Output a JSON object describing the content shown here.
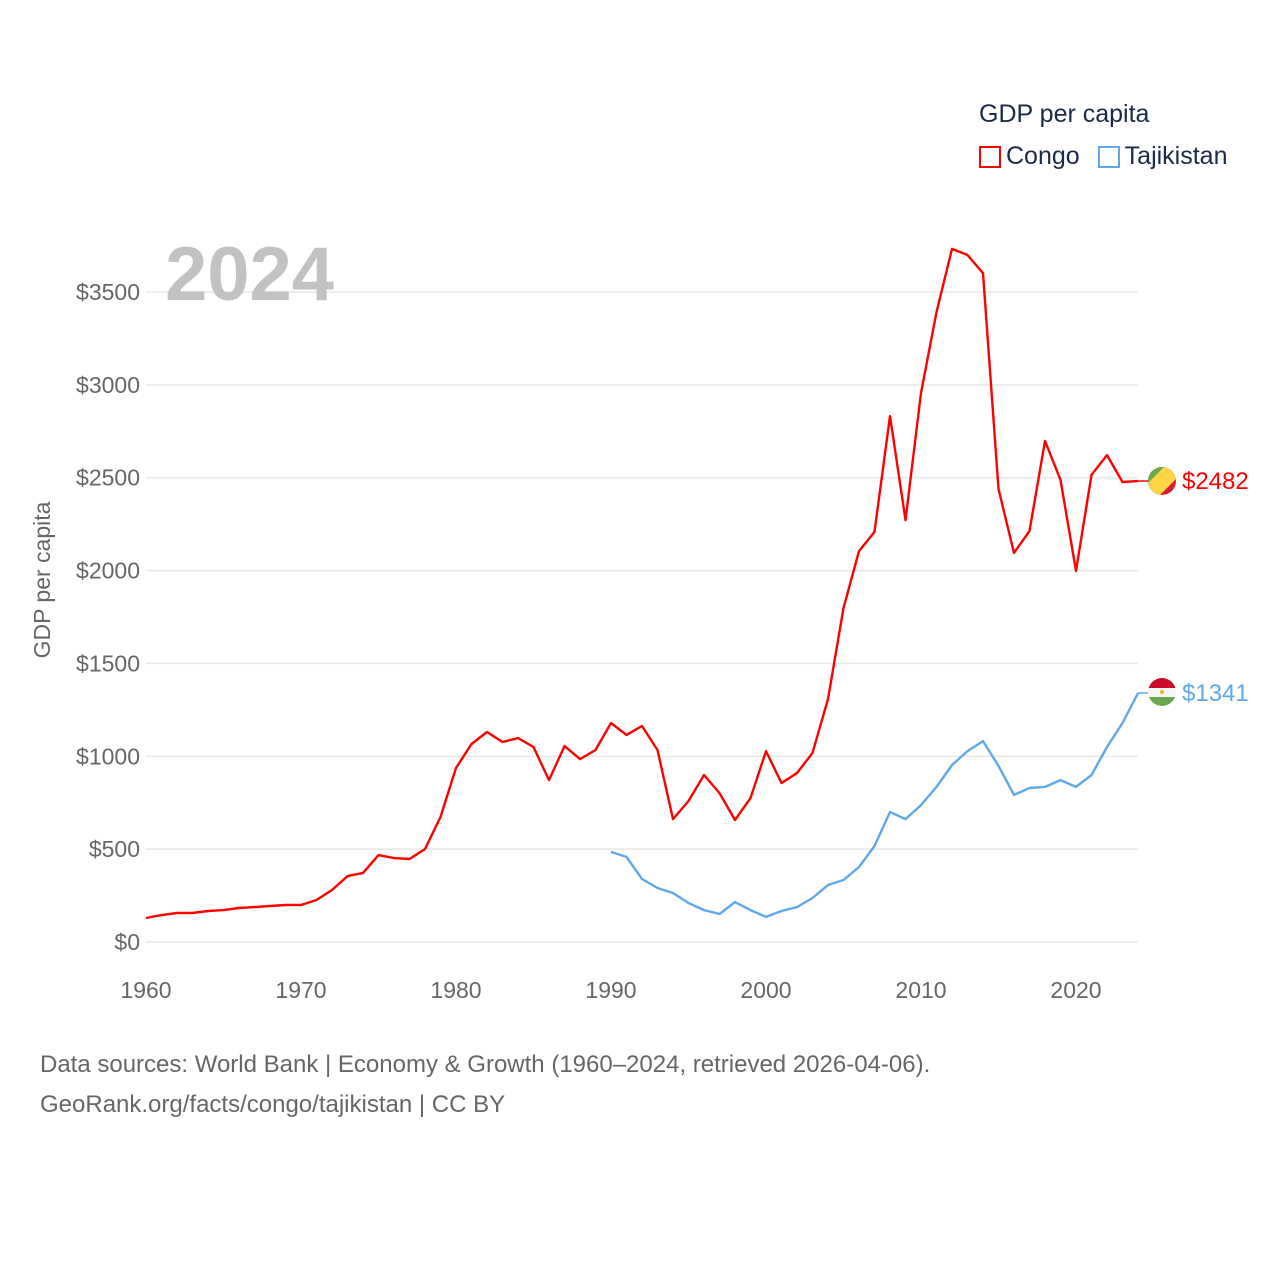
{
  "chart_data": {
    "type": "line",
    "title": "GDP per capita",
    "year_label": "2024",
    "ylabel": "GDP per capita",
    "xlabel": "",
    "xlim": [
      1960,
      2024
    ],
    "ylim": [
      0,
      3700
    ],
    "x_ticks": [
      "1960",
      "1970",
      "1980",
      "1990",
      "2000",
      "2010",
      "2020"
    ],
    "y_ticks": [
      "$0",
      "$500",
      "$1000",
      "$1500",
      "$2000",
      "$2500",
      "$3000",
      "$3500"
    ],
    "grid": true,
    "legend_placement": "top-right",
    "series": [
      {
        "name": "Congo",
        "color": "#ff0000",
        "start_year": 1960,
        "end_label": "$2482",
        "values": [
          129,
          145,
          156,
          156,
          167,
          172,
          183,
          188,
          194,
          199,
          199,
          226,
          280,
          355,
          372,
          468,
          452,
          447,
          501,
          673,
          937,
          1066,
          1131,
          1077,
          1098,
          1050,
          872,
          1055,
          985,
          1034,
          1179,
          1115,
          1163,
          1034,
          662,
          759,
          899,
          802,
          657,
          775,
          1028,
          856,
          910,
          1018,
          1308,
          1798,
          2105,
          2208,
          2832,
          2272,
          2956,
          3392,
          3732,
          3699,
          3602,
          2439,
          2095,
          2213,
          2698,
          2488,
          1998,
          2515,
          2622,
          2477,
          2482
        ]
      },
      {
        "name": "Tajikistan",
        "color": "#5fa8ea",
        "start_year": 1990,
        "end_label": "$1341",
        "values": [
          485,
          458,
          339,
          291,
          264,
          210,
          172,
          151,
          215,
          172,
          135,
          167,
          188,
          237,
          307,
          334,
          404,
          517,
          700,
          662,
          737,
          835,
          953,
          1028,
          1082,
          948,
          792,
          829,
          835,
          872,
          835,
          899,
          1050,
          1179,
          1341
        ]
      }
    ]
  },
  "footer": {
    "line1": "Data sources: World Bank | Economy & Growth (1960–2024, retrieved 2026-04-06).",
    "line2": "GeoRank.org/facts/congo/tajikistan | CC BY"
  }
}
